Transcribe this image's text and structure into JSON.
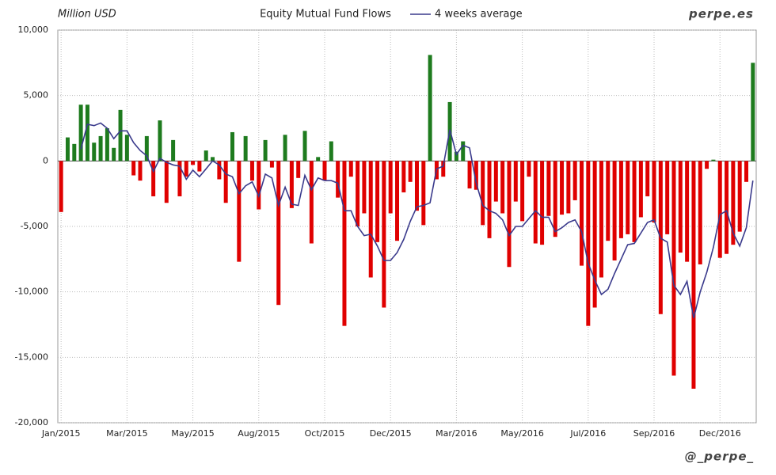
{
  "chart_data": {
    "type": "bar",
    "title": "Equity Mutual Fund Flows",
    "y_axis_label": "Million USD",
    "watermark": "perpe.es",
    "credit": "@_perpe_",
    "categories": [
      "Jan/2015",
      null,
      null,
      null,
      null,
      null,
      null,
      null,
      null,
      null,
      "Mar/2015",
      null,
      null,
      null,
      null,
      null,
      null,
      null,
      null,
      null,
      "May/2015",
      null,
      null,
      null,
      null,
      null,
      null,
      null,
      null,
      null,
      "Aug/2015",
      null,
      null,
      null,
      null,
      null,
      null,
      null,
      null,
      null,
      "Oct/2015",
      null,
      null,
      null,
      null,
      null,
      null,
      null,
      null,
      null,
      "Dec/2015",
      null,
      null,
      null,
      null,
      null,
      null,
      null,
      null,
      null,
      "Mar/2016",
      null,
      null,
      null,
      null,
      null,
      null,
      null,
      null,
      null,
      "May/2016",
      null,
      null,
      null,
      null,
      null,
      null,
      null,
      null,
      null,
      "Jul/2016",
      null,
      null,
      null,
      null,
      null,
      null,
      null,
      null,
      null,
      "Sep/2016",
      null,
      null,
      null,
      null,
      null,
      null,
      null,
      null,
      null,
      "Dec/2016",
      null,
      null,
      null,
      null,
      null
    ],
    "values": [
      -3900,
      1800,
      1300,
      4300,
      4300,
      1400,
      1900,
      2500,
      1000,
      3900,
      2000,
      -1100,
      -1500,
      1900,
      -2700,
      3100,
      -3200,
      1600,
      -2700,
      -1200,
      -300,
      -800,
      800,
      300,
      -1400,
      -3200,
      2200,
      -7700,
      1900,
      -1500,
      -3700,
      1600,
      -500,
      -11000,
      2000,
      -3600,
      -1300,
      2300,
      -6300,
      300,
      -1500,
      1500,
      -2800,
      -12600,
      -1200,
      -5000,
      -4000,
      -8900,
      -6200,
      -11200,
      -4000,
      -6100,
      -2400,
      -1600,
      -3800,
      -4900,
      8100,
      -1400,
      -1200,
      4500,
      700,
      1500,
      -2100,
      -2200,
      -4900,
      -5900,
      -3100,
      -4000,
      -8100,
      -3100,
      -4600,
      -1200,
      -6300,
      -6400,
      -4200,
      -5800,
      -4100,
      -4000,
      -3000,
      -8000,
      -12600,
      -11200,
      -8900,
      -6100,
      -7600,
      -5900,
      -5600,
      -6200,
      -4300,
      -2700,
      -4700,
      -11700,
      -5600,
      -16400,
      -7000,
      -7700,
      -17400,
      -7900,
      -600,
      100,
      -7400,
      -7100,
      -6400,
      -5400,
      -1600,
      7500
    ],
    "positive_color": "#1e7b1e",
    "negative_color": "#e00000",
    "line": {
      "name": "4 weeks average",
      "color": "#3a3a8c",
      "values": [
        null,
        null,
        null,
        900,
        2800,
        2700,
        2900,
        2500,
        1700,
        2300,
        2300,
        1400,
        800,
        400,
        -800,
        200,
        -100,
        -300,
        -400,
        -1400,
        -700,
        -1200,
        -600,
        0,
        -300,
        -1000,
        -1200,
        -2500,
        -1900,
        -1600,
        -2700,
        -1000,
        -1300,
        -3400,
        -2000,
        -3300,
        -3400,
        -1100,
        -2200,
        -1300,
        -1500,
        -1500,
        -1700,
        -3800,
        -3800,
        -5000,
        -5700,
        -5600,
        -6500,
        -7600,
        -7600,
        -7000,
        -6000,
        -4600,
        -3500,
        -3400,
        -3200,
        -600,
        -400,
        2400,
        500,
        1200,
        1000,
        -1700,
        -3400,
        -3800,
        -4000,
        -4500,
        -5700,
        -5000,
        -5000,
        -4400,
        -3800,
        -4300,
        -4300,
        -5400,
        -5100,
        -4700,
        -4500,
        -5400,
        -7800,
        -9100,
        -10200,
        -9800,
        -8600,
        -7500,
        -6400,
        -6300,
        -5500,
        -4700,
        -4500,
        -5900,
        -6200,
        -9500,
        -10200,
        -9200,
        -12000,
        -10000,
        -8500,
        -6600,
        -4100,
        -3800,
        -5500,
        -6500,
        -5100,
        -1500
      ]
    },
    "ylim": [
      -20000,
      10000
    ],
    "yticks": [
      {
        "value": 10000,
        "label": "10,000"
      },
      {
        "value": 5000,
        "label": "5,000"
      },
      0,
      {
        "value": -5000,
        "label": "-5,000"
      },
      {
        "value": -10000,
        "label": "-10,000"
      },
      {
        "value": -15000,
        "label": "-15,000"
      },
      {
        "value": -20000,
        "label": "-20,000"
      }
    ],
    "grid": true
  }
}
